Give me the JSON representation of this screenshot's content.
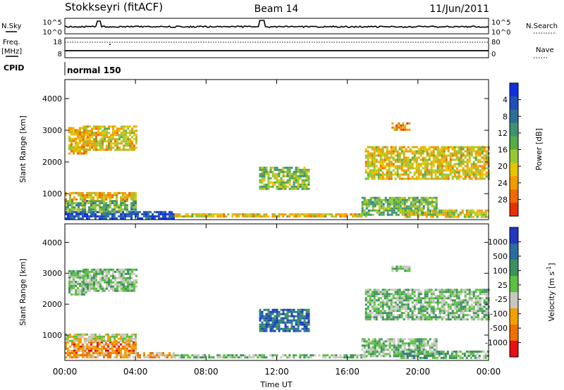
{
  "header": {
    "station": "Stokkseyri (fitACF)",
    "beam": "Beam 14",
    "date": "11/Jun/2011"
  },
  "top_panels": {
    "nsky_label": "N.Sky",
    "nsky_ticks": [
      "10^5",
      "10^0"
    ],
    "nsearch_label": "N.Search",
    "nsearch_ticks": [
      "10^5",
      "10^0"
    ],
    "freq_label": "Freq.",
    "freq_unit": "[MHz]",
    "freq_ticks": [
      "18",
      "8"
    ],
    "nave_label": "Nave",
    "nave_ticks": [
      "80",
      "0"
    ],
    "cpid_label": "CPID",
    "cpid_value": "normal 150"
  },
  "x_axis": {
    "label": "Time UT",
    "ticks": [
      "00:00",
      "04:00",
      "08:00",
      "12:00",
      "16:00",
      "20:00",
      "00:00"
    ]
  },
  "chart_data": [
    {
      "type": "heatmap",
      "title": "",
      "xlabel": "Time UT",
      "ylabel": "Slant Range [km]",
      "xlim": [
        0,
        24
      ],
      "ylim": [
        180,
        4600
      ],
      "yticks": [
        "1000",
        "2000",
        "3000",
        "4000"
      ],
      "colorbar_label": "Power [dB]",
      "colorbar_ticks": [
        "4",
        "8",
        "12",
        "16",
        "20",
        "24",
        "28"
      ],
      "colorbar_colors": [
        "#1030e0",
        "#2050b8",
        "#2e6e9a",
        "#3e9470",
        "#5aaa44",
        "#96c832",
        "#e8c400",
        "#f49a00",
        "#f06a00",
        "#e83000"
      ],
      "regions": [
        {
          "t0": 0.0,
          "t1": 6.2,
          "r0": 250,
          "r1": 450,
          "level": 0.85
        },
        {
          "t0": 0.0,
          "t1": 4.0,
          "r0": 450,
          "r1": 800,
          "level": 0.55
        },
        {
          "t0": 0.0,
          "t1": 4.0,
          "r0": 800,
          "r1": 1050,
          "level": 0.3
        },
        {
          "t0": 6.2,
          "t1": 17.0,
          "r0": 250,
          "r1": 380,
          "level": 0.35
        },
        {
          "t0": 0.2,
          "t1": 1.2,
          "r0": 2300,
          "r1": 3100,
          "level": 0.3
        },
        {
          "t0": 1.0,
          "t1": 4.0,
          "r0": 2400,
          "r1": 3150,
          "level": 0.35
        },
        {
          "t0": 11.0,
          "t1": 13.8,
          "r0": 1150,
          "r1": 1850,
          "level": 0.5
        },
        {
          "t0": 16.8,
          "t1": 21.0,
          "r0": 350,
          "r1": 900,
          "level": 0.55
        },
        {
          "t0": 17.0,
          "t1": 24.0,
          "r0": 1500,
          "r1": 2500,
          "level": 0.35
        },
        {
          "t0": 19.0,
          "t1": 24.0,
          "r0": 250,
          "r1": 500,
          "level": 0.4
        },
        {
          "t0": 18.5,
          "t1": 19.5,
          "r0": 3050,
          "r1": 3250,
          "level": 0.25
        }
      ]
    },
    {
      "type": "heatmap",
      "title": "",
      "xlabel": "Time UT",
      "ylabel": "Slant Range [km]",
      "xlim": [
        0,
        24
      ],
      "ylim": [
        180,
        4600
      ],
      "yticks": [
        "1000",
        "2000",
        "3000",
        "4000"
      ],
      "colorbar_label": "Velocity [m s-1]",
      "colorbar_label_main": "Velocity [m s",
      "colorbar_label_sup": "-1",
      "colorbar_label_end": "]",
      "colorbar_ticks": [
        "1000",
        "500",
        "100",
        "25",
        "-25",
        "-100",
        "-500",
        "-1000"
      ],
      "colorbar_colors": [
        "#2038c0",
        "#2a6ea0",
        "#3c9060",
        "#5cc040",
        "#c8c8c0",
        "#f0a000",
        "#f07000",
        "#e81010"
      ],
      "regions": [
        {
          "t0": 0.0,
          "t1": 6.2,
          "r0": 250,
          "r1": 450,
          "level": 0.3
        },
        {
          "t0": 0.0,
          "t1": 4.0,
          "r0": 450,
          "r1": 800,
          "level": 0.25
        },
        {
          "t0": 0.0,
          "t1": 4.0,
          "r0": 800,
          "r1": 1050,
          "level": 0.45
        },
        {
          "t0": 6.2,
          "t1": 17.0,
          "r0": 250,
          "r1": 380,
          "level": 0.55
        },
        {
          "t0": 0.2,
          "t1": 1.2,
          "r0": 2300,
          "r1": 3100,
          "level": 0.55
        },
        {
          "t0": 1.0,
          "t1": 4.0,
          "r0": 2400,
          "r1": 3150,
          "level": 0.55
        },
        {
          "t0": 11.0,
          "t1": 13.8,
          "r0": 1150,
          "r1": 1850,
          "level": 0.8
        },
        {
          "t0": 16.8,
          "t1": 21.0,
          "r0": 350,
          "r1": 900,
          "level": 0.55
        },
        {
          "t0": 17.0,
          "t1": 24.0,
          "r0": 1500,
          "r1": 2500,
          "level": 0.55
        },
        {
          "t0": 19.0,
          "t1": 24.0,
          "r0": 250,
          "r1": 500,
          "level": 0.6
        },
        {
          "t0": 18.5,
          "t1": 19.5,
          "r0": 3050,
          "r1": 3250,
          "level": 0.55
        }
      ]
    }
  ]
}
